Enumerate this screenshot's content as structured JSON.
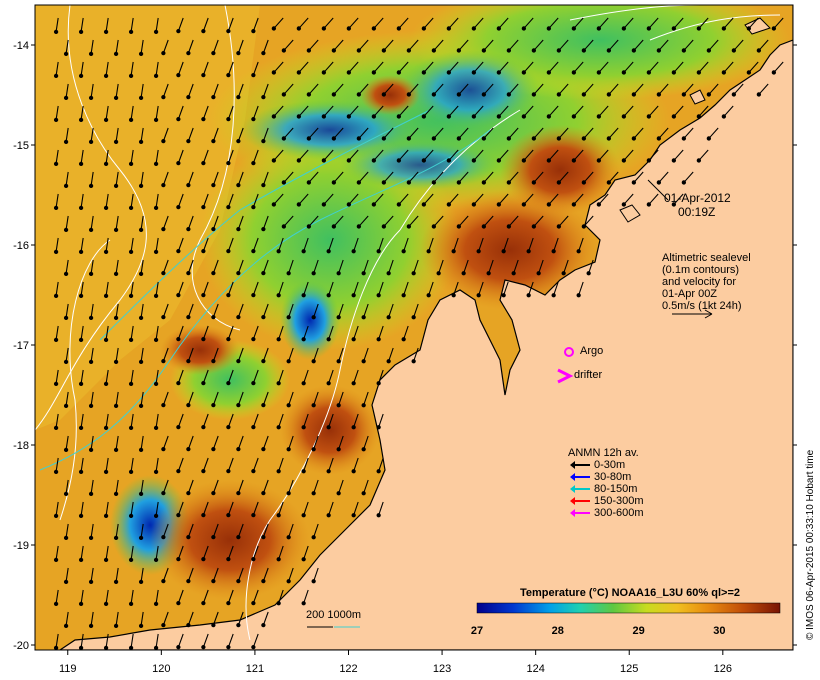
{
  "map": {
    "lon_ticks": [
      "119",
      "120",
      "121",
      "122",
      "123",
      "124",
      "125",
      "126"
    ],
    "lat_ticks": [
      "-14",
      "-15",
      "-16",
      "-17",
      "-18",
      "-19",
      "-20"
    ],
    "lon_range": [
      118.65,
      126.75
    ],
    "lat_range": [
      -20.05,
      -13.6
    ],
    "land_color": "#fccca0",
    "coast_color": "#000000"
  },
  "annotations": {
    "date": "01-Apr-2012",
    "time": "00:19Z",
    "altimetry_lines": [
      "Altimetric sealevel",
      "(0.1m contours)",
      "and velocity for",
      "01-Apr 00Z",
      "0.5m/s (1kt 24h)"
    ],
    "argo_label": "Argo",
    "drifter_label": "drifter",
    "isobath_label": "200  1000m"
  },
  "anmn_legend": {
    "title": "ANMN 12h av.",
    "items": [
      {
        "label": "0-30m",
        "color": "#000000"
      },
      {
        "label": "30-80m",
        "color": "#0000ff"
      },
      {
        "label": "80-150m",
        "color": "#00c8c8"
      },
      {
        "label": "150-300m",
        "color": "#ff0000"
      },
      {
        "label": "300-600m",
        "color": "#ff00ff"
      }
    ]
  },
  "colorbar": {
    "title": "Temperature (°C) NOAA16_L3U 60% ql>=2",
    "ticks": [
      "27",
      "28",
      "29",
      "30"
    ],
    "range": [
      27,
      30.75
    ]
  },
  "copyright": "© IMOS 06-Apr-2015 00:33:10 Hobart time"
}
